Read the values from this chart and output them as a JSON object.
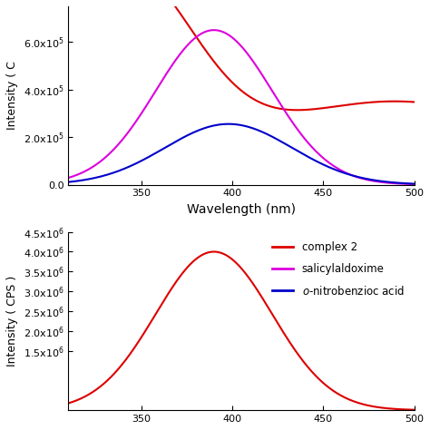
{
  "top_panel": {
    "xlabel": "Wavelength (nm)",
    "ylabel": "Intensity ( C",
    "xmin": 310,
    "xmax": 500,
    "ymin": 0.0,
    "ymax": 750000.0,
    "yticks": [
      0.0,
      200000.0,
      400000.0,
      600000.0
    ],
    "xticks": [
      350,
      400,
      450,
      500
    ],
    "red_color": "#dd0000",
    "magenta_color": "#dd00dd",
    "blue_color": "#0000cc"
  },
  "bottom_panel": {
    "ylabel": "Intensity ( CPS )",
    "xmin": 310,
    "xmax": 500,
    "ymin": 0.0,
    "ymax": 4500000.0,
    "yticks": [
      1500000.0,
      2000000.0,
      2500000.0,
      3000000.0,
      3500000.0,
      4000000.0,
      4500000.0
    ],
    "xticks": [
      350,
      400,
      450,
      500
    ],
    "red_color": "#dd0000",
    "magenta_color": "#dd00dd",
    "blue_color": "#0000cc"
  },
  "legend": {
    "complex2": "complex 2",
    "salicylaldoxime": "salicylaldoxime",
    "o_nitrobenzioc": "o-nitrobenzioc acid"
  }
}
